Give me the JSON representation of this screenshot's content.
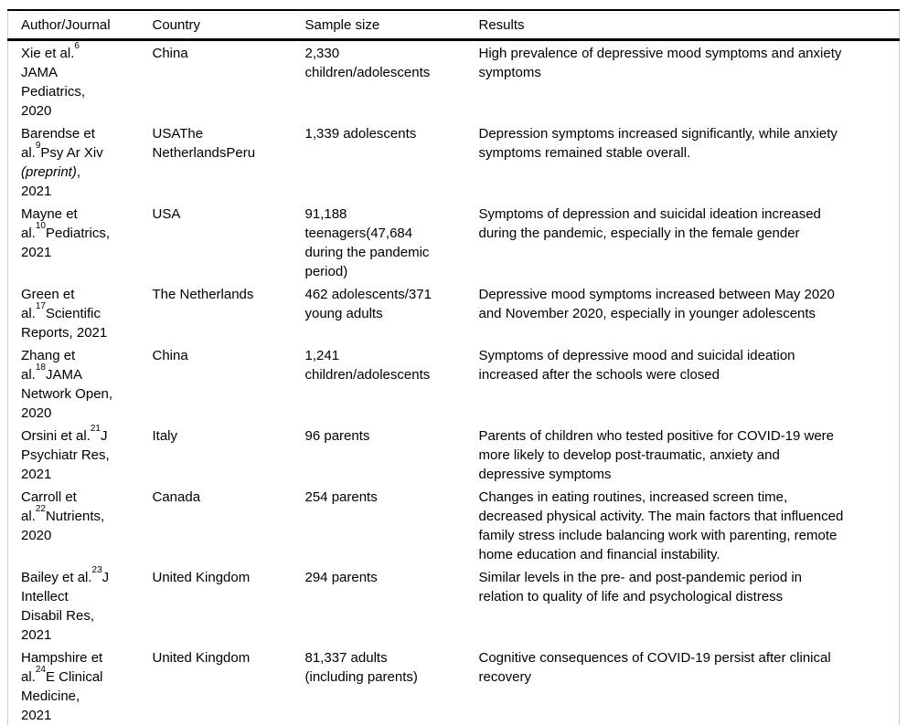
{
  "colors": {
    "rule": "#000000",
    "side_border": "#cccccc",
    "text": "#000000",
    "background": "#ffffff"
  },
  "table": {
    "columns": [
      "Author/Journal",
      "Country",
      "Sample size",
      "Results"
    ],
    "rows": [
      {
        "author": [
          {
            "t": "Xie et al."
          },
          {
            "t": "6",
            "sup": true
          },
          {
            "t": "\nJAMA\nPediatrics,\n2020"
          }
        ],
        "country": "China",
        "sample": "2,330\nchildren/adolescents",
        "results": "High prevalence of depressive mood symptoms and anxiety\nsymptoms"
      },
      {
        "author": [
          {
            "t": "Barendse et\nal."
          },
          {
            "t": "9",
            "sup": true
          },
          {
            "t": "Psy Ar Xiv\n"
          },
          {
            "t": "(preprint)",
            "italic": true
          },
          {
            "t": ",\n2021"
          }
        ],
        "country": "USAThe\nNetherlandsPeru",
        "sample": "1,339 adolescents",
        "results": "Depression symptoms increased significantly, while anxiety\nsymptoms remained stable overall."
      },
      {
        "author": [
          {
            "t": "Mayne et\nal."
          },
          {
            "t": "10",
            "sup": true
          },
          {
            "t": "Pediatrics,\n2021"
          }
        ],
        "country": "USA",
        "sample": "91,188\nteenagers(47,684\nduring the pandemic\nperiod)",
        "results": "Symptoms of depression and suicidal ideation increased\nduring the pandemic, especially in the female gender"
      },
      {
        "author": [
          {
            "t": "Green et\nal."
          },
          {
            "t": "17",
            "sup": true
          },
          {
            "t": "Scientific\nReports, 2021"
          }
        ],
        "country": "The Netherlands",
        "sample": "462 adolescents/371\nyoung adults",
        "results": "Depressive mood symptoms increased between May 2020\nand November 2020, especially in younger adolescents"
      },
      {
        "author": [
          {
            "t": "Zhang et\nal."
          },
          {
            "t": "18",
            "sup": true
          },
          {
            "t": "JAMA\nNetwork Open,\n2020"
          }
        ],
        "country": "China",
        "sample": "1,241\nchildren/adolescents",
        "results": "Symptoms of depressive mood and suicidal ideation\nincreased after the schools were closed"
      },
      {
        "author": [
          {
            "t": "Orsini et al."
          },
          {
            "t": "21",
            "sup": true
          },
          {
            "t": "J\nPsychiatr Res,\n2021"
          }
        ],
        "country": "Italy",
        "sample": "96 parents",
        "results": "Parents of children who tested positive for COVID-19 were\nmore likely to develop post-traumatic, anxiety and\ndepressive symptoms"
      },
      {
        "author": [
          {
            "t": "Carroll et\nal."
          },
          {
            "t": "22",
            "sup": true
          },
          {
            "t": "Nutrients,\n2020"
          }
        ],
        "country": "Canada",
        "sample": "254 parents",
        "results": "Changes in eating routines, increased screen time,\ndecreased physical activity. The main factors that influenced\nfamily stress include balancing work with parenting, remote\nhome education and financial instability."
      },
      {
        "author": [
          {
            "t": "Bailey et al."
          },
          {
            "t": "23",
            "sup": true
          },
          {
            "t": "J\nIntellect\nDisabil Res,\n2021"
          }
        ],
        "country": "United Kingdom",
        "sample": "294 parents",
        "results": "Similar levels in the pre- and post-pandemic period in\nrelation to quality of life and psychological distress"
      },
      {
        "author": [
          {
            "t": "Hampshire et\nal."
          },
          {
            "t": "24",
            "sup": true
          },
          {
            "t": "E Clinical\nMedicine,\n2021"
          }
        ],
        "country": "United Kingdom",
        "sample": "81,337 adults\n(including parents)",
        "results": "Cognitive consequences of COVID-19 persist after clinical\nrecovery"
      }
    ]
  }
}
